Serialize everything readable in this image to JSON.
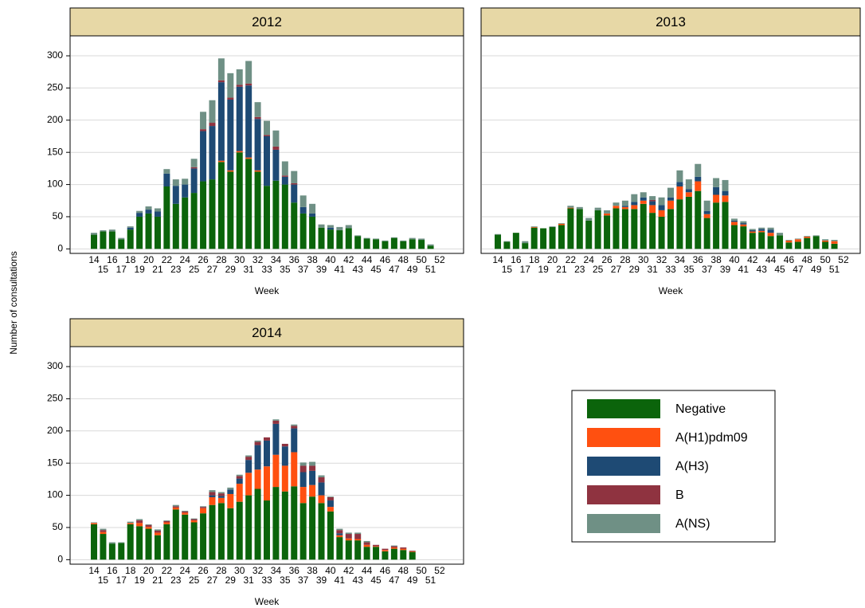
{
  "y_label": "Number of consultations",
  "legend_position": "lower right",
  "chart_data": [
    {
      "type": "bar",
      "stacked": true,
      "title": "2012",
      "x_label": "Week",
      "grid": true,
      "show_ytick_labels": true,
      "categories": [
        "14",
        "15",
        "16",
        "17",
        "18",
        "19",
        "20",
        "21",
        "22",
        "23",
        "24",
        "25",
        "26",
        "27",
        "28",
        "29",
        "30",
        "31",
        "32",
        "33",
        "34",
        "35",
        "36",
        "37",
        "38",
        "39",
        "40",
        "41",
        "42",
        "43",
        "44",
        "45",
        "46",
        "47",
        "48",
        "49",
        "50",
        "51",
        "52"
      ],
      "ylim": [
        -7,
        331
      ],
      "yticks": [
        0,
        50,
        100,
        150,
        200,
        250,
        300
      ],
      "series": [
        {
          "name": "Negative",
          "color": "#0b640b",
          "values": [
            22,
            27,
            27,
            15,
            30,
            50,
            55,
            50,
            97,
            70,
            80,
            87,
            105,
            108,
            135,
            120,
            150,
            140,
            120,
            98,
            106,
            100,
            72,
            55,
            50,
            33,
            30,
            29,
            32,
            20,
            16,
            15,
            12,
            17,
            12,
            15,
            14,
            5,
            0
          ]
        },
        {
          "name": "A(H1)pdm09",
          "color": "#ff5010",
          "values": [
            0,
            0,
            0,
            0,
            0,
            0,
            0,
            0,
            0,
            0,
            0,
            0,
            0,
            0,
            2,
            2,
            2,
            2,
            2,
            0,
            0,
            0,
            0,
            0,
            0,
            0,
            0,
            0,
            0,
            0,
            0,
            0,
            0,
            0,
            0,
            0,
            0,
            0,
            0
          ]
        },
        {
          "name": "A(H3)",
          "color": "#1e4a74",
          "values": [
            0,
            0,
            0,
            0,
            3,
            6,
            6,
            8,
            20,
            28,
            20,
            38,
            78,
            83,
            122,
            110,
            100,
            112,
            80,
            77,
            48,
            12,
            28,
            10,
            5,
            0,
            3,
            0,
            0,
            0,
            0,
            0,
            0,
            0,
            0,
            0,
            0,
            0,
            0
          ]
        },
        {
          "name": "B",
          "color": "#8f3340",
          "values": [
            0,
            0,
            0,
            0,
            0,
            0,
            0,
            0,
            0,
            0,
            0,
            2,
            3,
            5,
            3,
            3,
            3,
            3,
            3,
            2,
            5,
            2,
            2,
            0,
            0,
            0,
            0,
            0,
            0,
            0,
            0,
            0,
            0,
            0,
            0,
            0,
            0,
            0,
            0
          ]
        },
        {
          "name": "A(NS)",
          "color": "#6f9085",
          "values": [
            3,
            2,
            3,
            2,
            2,
            3,
            5,
            5,
            7,
            10,
            9,
            13,
            27,
            35,
            34,
            38,
            24,
            35,
            23,
            22,
            25,
            22,
            19,
            18,
            15,
            5,
            4,
            5,
            5,
            1,
            1,
            1,
            1,
            1,
            1,
            2,
            2,
            2,
            0
          ]
        }
      ]
    },
    {
      "type": "bar",
      "stacked": true,
      "title": "2013",
      "x_label": "Week",
      "grid": true,
      "show_ytick_labels": false,
      "categories": [
        "14",
        "15",
        "16",
        "17",
        "18",
        "19",
        "20",
        "21",
        "22",
        "23",
        "24",
        "25",
        "26",
        "27",
        "28",
        "29",
        "30",
        "31",
        "32",
        "33",
        "34",
        "35",
        "36",
        "37",
        "38",
        "39",
        "40",
        "41",
        "42",
        "43",
        "44",
        "45",
        "46",
        "47",
        "48",
        "49",
        "50",
        "51",
        "52"
      ],
      "ylim": [
        -7,
        331
      ],
      "yticks": [
        0,
        50,
        100,
        150,
        200,
        250,
        300
      ],
      "series": [
        {
          "name": "Negative",
          "color": "#0b640b",
          "values": [
            22,
            11,
            25,
            9,
            33,
            32,
            34,
            37,
            63,
            62,
            44,
            60,
            52,
            63,
            62,
            62,
            70,
            56,
            50,
            62,
            77,
            81,
            90,
            48,
            72,
            73,
            37,
            35,
            25,
            26,
            20,
            21,
            10,
            11,
            17,
            20,
            11,
            8,
            0
          ]
        },
        {
          "name": "A(H1)pdm09",
          "color": "#ff5010",
          "values": [
            0,
            0,
            0,
            0,
            1,
            0,
            0,
            2,
            1,
            0,
            0,
            0,
            3,
            4,
            3,
            6,
            5,
            12,
            10,
            13,
            20,
            7,
            15,
            6,
            12,
            10,
            5,
            3,
            2,
            2,
            5,
            0,
            3,
            4,
            2,
            0,
            2,
            4,
            0
          ]
        },
        {
          "name": "A(H3)",
          "color": "#1e4a74",
          "values": [
            0,
            0,
            0,
            0,
            0,
            0,
            0,
            0,
            0,
            0,
            0,
            0,
            0,
            0,
            2,
            5,
            5,
            6,
            8,
            5,
            7,
            5,
            7,
            5,
            12,
            7,
            2,
            2,
            2,
            3,
            5,
            0,
            0,
            0,
            0,
            0,
            0,
            0,
            0
          ]
        },
        {
          "name": "B",
          "color": "#8f3340",
          "values": [
            0,
            0,
            0,
            0,
            0,
            0,
            0,
            0,
            0,
            0,
            0,
            0,
            0,
            0,
            0,
            0,
            0,
            2,
            0,
            0,
            0,
            0,
            0,
            0,
            0,
            0,
            0,
            0,
            0,
            0,
            0,
            0,
            0,
            0,
            0,
            0,
            0,
            0,
            0
          ]
        },
        {
          "name": "A(NS)",
          "color": "#6f9085",
          "values": [
            1,
            1,
            0,
            3,
            1,
            0,
            1,
            1,
            3,
            3,
            4,
            4,
            5,
            5,
            8,
            12,
            8,
            6,
            12,
            15,
            18,
            15,
            20,
            16,
            14,
            17,
            3,
            3,
            2,
            2,
            3,
            4,
            1,
            1,
            1,
            1,
            2,
            2,
            0
          ]
        }
      ]
    },
    {
      "type": "bar",
      "stacked": true,
      "title": "2014",
      "x_label": "Week",
      "grid": true,
      "show_ytick_labels": true,
      "categories": [
        "14",
        "15",
        "16",
        "17",
        "18",
        "19",
        "20",
        "21",
        "22",
        "23",
        "24",
        "25",
        "26",
        "27",
        "28",
        "29",
        "30",
        "31",
        "32",
        "33",
        "34",
        "35",
        "36",
        "37",
        "38",
        "39",
        "40",
        "41",
        "42",
        "43",
        "44",
        "45",
        "46",
        "47",
        "48",
        "49",
        "50",
        "51",
        "52"
      ],
      "ylim": [
        -7,
        331
      ],
      "yticks": [
        0,
        50,
        100,
        150,
        200,
        250,
        300
      ],
      "series": [
        {
          "name": "Negative",
          "color": "#0b640b",
          "values": [
            55,
            40,
            25,
            26,
            55,
            52,
            48,
            38,
            55,
            78,
            70,
            58,
            72,
            85,
            88,
            80,
            90,
            100,
            110,
            92,
            113,
            106,
            114,
            88,
            98,
            88,
            75,
            35,
            30,
            30,
            20,
            20,
            13,
            17,
            15,
            12,
            0,
            0,
            0
          ]
        },
        {
          "name": "A(H1)pdm09",
          "color": "#ff5010",
          "values": [
            2,
            3,
            0,
            0,
            2,
            5,
            3,
            4,
            3,
            3,
            3,
            3,
            8,
            12,
            8,
            22,
            28,
            35,
            30,
            53,
            50,
            40,
            53,
            25,
            18,
            12,
            7,
            3,
            3,
            2,
            3,
            1,
            2,
            2,
            2,
            1,
            0,
            0,
            0
          ]
        },
        {
          "name": "A(H3)",
          "color": "#1e4a74",
          "values": [
            0,
            0,
            0,
            0,
            0,
            0,
            0,
            0,
            0,
            0,
            0,
            0,
            0,
            3,
            3,
            7,
            8,
            20,
            38,
            40,
            48,
            30,
            37,
            23,
            22,
            20,
            10,
            3,
            0,
            0,
            0,
            0,
            0,
            0,
            0,
            0,
            0,
            0,
            0
          ]
        },
        {
          "name": "B",
          "color": "#8f3340",
          "values": [
            0,
            3,
            0,
            0,
            0,
            4,
            3,
            3,
            2,
            2,
            2,
            2,
            2,
            5,
            4,
            0,
            4,
            5,
            5,
            5,
            5,
            4,
            4,
            10,
            8,
            8,
            5,
            5,
            7,
            8,
            4,
            2,
            2,
            2,
            2,
            1,
            0,
            0,
            0
          ]
        },
        {
          "name": "A(NS)",
          "color": "#6f9085",
          "values": [
            1,
            2,
            2,
            1,
            2,
            2,
            1,
            2,
            1,
            2,
            1,
            1,
            1,
            3,
            2,
            3,
            2,
            2,
            2,
            0,
            2,
            0,
            2,
            5,
            6,
            3,
            1,
            2,
            2,
            2,
            2,
            0,
            0,
            1,
            0,
            0,
            0,
            0,
            0
          ]
        }
      ]
    }
  ]
}
